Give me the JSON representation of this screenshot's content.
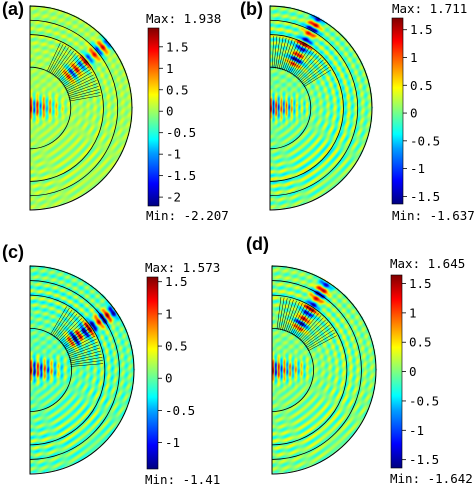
{
  "panels": [
    {
      "label": "(a)",
      "max_label": "Max: 1.938",
      "min_label": "Min: -2.207",
      "ticks": [
        "1.5",
        "1",
        "0.5",
        "0",
        "-0.5",
        "-1",
        "-1.5",
        "-2"
      ],
      "tick_values": [
        1.5,
        1,
        0.5,
        0,
        -0.5,
        -1,
        -1.5,
        -2
      ],
      "range": [
        -2.207,
        1.938
      ],
      "wave": {
        "beam_angle_deg": 40,
        "beam_strength": 1.6,
        "inner_strength": 1.8,
        "inner_freq": 0.45,
        "ring_strength": 0.25
      }
    },
    {
      "label": "(b)",
      "max_label": "Max: 1.711",
      "min_label": "Min: -1.637",
      "ticks": [
        "1.5",
        "1",
        "0.5",
        "0",
        "-0.5",
        "-1",
        "-1.5"
      ],
      "tick_values": [
        1.5,
        1,
        0.5,
        0,
        -0.5,
        -1,
        -1.5
      ],
      "range": [
        -1.637,
        1.711
      ],
      "wave": {
        "beam_angle_deg": 62,
        "beam_strength": 1.5,
        "inner_strength": 1.6,
        "inner_freq": 0.55,
        "ring_strength": 0.45
      }
    },
    {
      "label": "(c)",
      "max_label": "Max: 1.573",
      "min_label": "Min: -1.41",
      "ticks": [
        "1.5",
        "1",
        "0.5",
        "0",
        "-0.5",
        "-1"
      ],
      "tick_values": [
        1.5,
        1,
        0.5,
        0,
        -0.5,
        -1
      ],
      "range": [
        -1.41,
        1.573
      ],
      "wave": {
        "beam_angle_deg": 35,
        "beam_strength": 1.5,
        "inner_strength": 1.5,
        "inner_freq": 0.42,
        "ring_strength": 0.35
      }
    },
    {
      "label": "(d)",
      "max_label": "Max: 1.645",
      "min_label": "Min: -1.642",
      "ticks": [
        "1.5",
        "1",
        "0.5",
        "0",
        "-0.5",
        "-1",
        "-1.5"
      ],
      "tick_values": [
        1.5,
        1,
        0.5,
        0,
        -0.5,
        -1,
        -1.5
      ],
      "range": [
        -1.642,
        1.645
      ],
      "wave": {
        "beam_angle_deg": 58,
        "beam_strength": 1.5,
        "inner_strength": 1.6,
        "inner_freq": 0.5,
        "ring_strength": 0.35
      }
    }
  ],
  "colors": {
    "background_field": "#66d08a",
    "colormap": [
      "#00007f",
      "#0000ff",
      "#00a0ff",
      "#00ffff",
      "#7fff7f",
      "#ffff00",
      "#ff8000",
      "#ff0000",
      "#7f0000"
    ],
    "outline": "#000000"
  }
}
